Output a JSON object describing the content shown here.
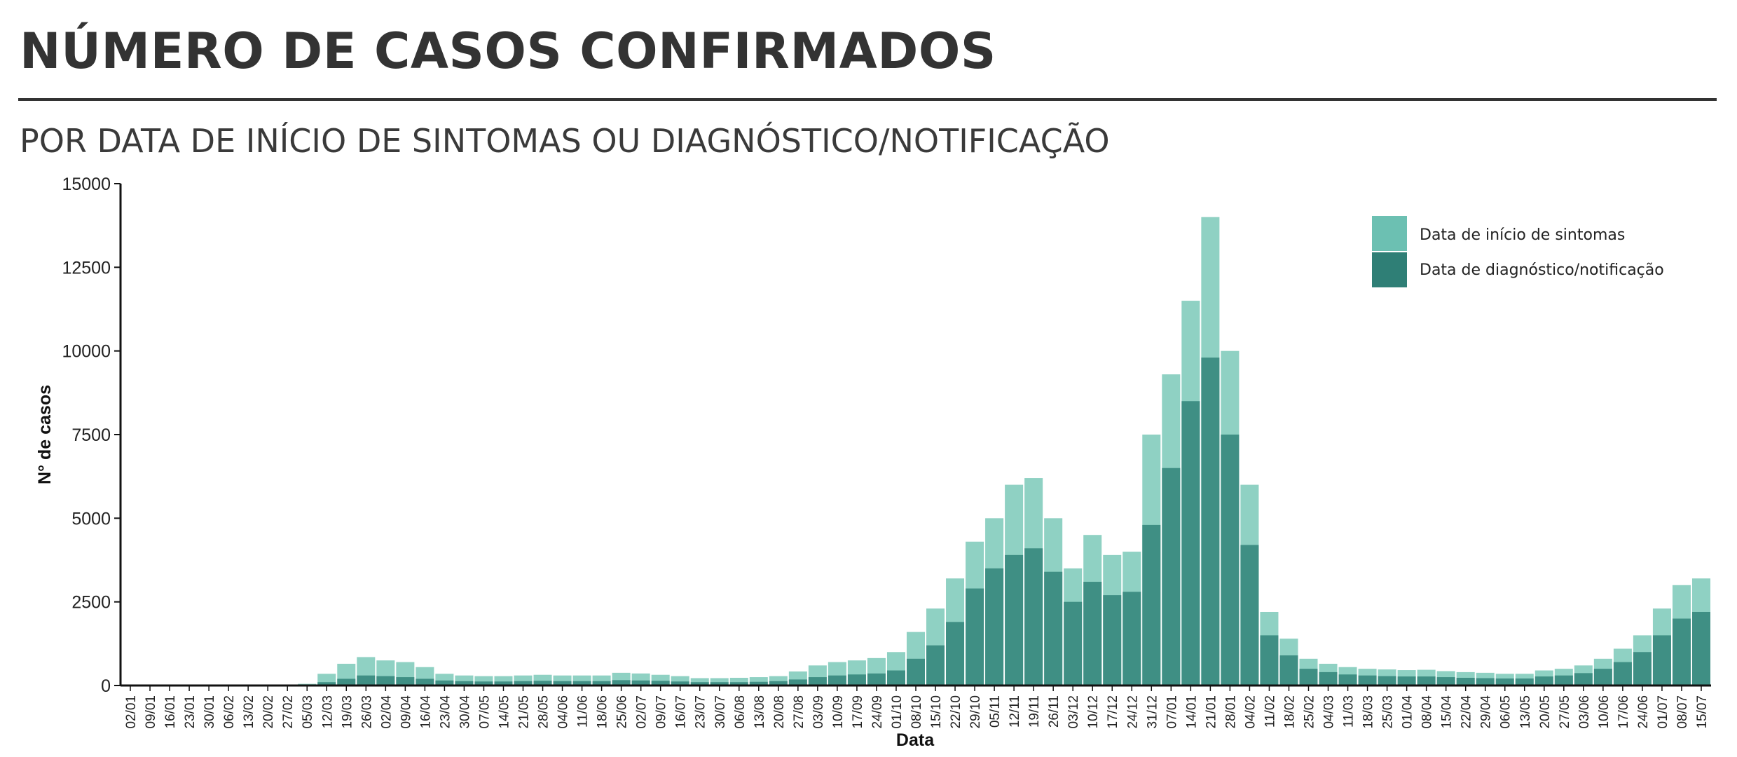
{
  "header": {
    "title": "NÚMERO DE CASOS CONFIRMADOS",
    "subtitle": "POR DATA DE INÍCIO DE SINTOMAS OU DIAGNÓSTICO/NOTIFICAÇÃO"
  },
  "colors": {
    "symptoms": "#8fd1c3",
    "diagnosis": "#3f8f84",
    "legend_symptoms": "#6cc0b2",
    "legend_diagnosis": "#2f7f76",
    "axis": "#111111"
  },
  "chart_data": {
    "type": "bar",
    "title": "",
    "xlabel": "Data",
    "ylabel": "N° de casos",
    "ylim": [
      0,
      15000
    ],
    "yticks": [
      0,
      2500,
      5000,
      7500,
      10000,
      12500,
      15000
    ],
    "xticks": [
      "02/01",
      "09/01",
      "16/01",
      "23/01",
      "30/01",
      "06/02",
      "13/02",
      "20/02",
      "27/02",
      "05/03",
      "12/03",
      "19/03",
      "26/03",
      "02/04",
      "09/04",
      "16/04",
      "23/04",
      "30/04",
      "07/05",
      "14/05",
      "21/05",
      "28/05",
      "04/06",
      "11/06",
      "18/06",
      "25/06",
      "02/07",
      "09/07",
      "16/07",
      "23/07",
      "30/07",
      "06/08",
      "13/08",
      "20/08",
      "27/08",
      "03/09",
      "10/09",
      "17/09",
      "24/09",
      "01/10",
      "08/10",
      "15/10",
      "22/10",
      "29/10",
      "05/11",
      "12/11",
      "19/11",
      "26/11",
      "03/12",
      "10/12",
      "17/12",
      "24/12",
      "31/12",
      "07/01",
      "14/01",
      "21/01",
      "28/01",
      "04/02",
      "11/02",
      "18/02",
      "25/02",
      "04/03",
      "11/03",
      "18/03",
      "25/03",
      "01/04",
      "08/04",
      "15/04",
      "22/04",
      "29/04",
      "06/05",
      "13/05",
      "20/05",
      "27/05",
      "03/06",
      "10/06",
      "17/06",
      "24/06",
      "01/07",
      "08/07",
      "15/07"
    ],
    "legend_position": "top-right",
    "grid": false,
    "series": [
      {
        "name": "Data de início de sintomas",
        "color": "#8fd1c3",
        "values": [
          0,
          0,
          0,
          0,
          0,
          0,
          0,
          0,
          0,
          50,
          350,
          650,
          850,
          750,
          700,
          550,
          350,
          300,
          280,
          280,
          300,
          320,
          300,
          300,
          300,
          380,
          360,
          320,
          280,
          220,
          220,
          230,
          250,
          280,
          420,
          600,
          700,
          750,
          820,
          1000,
          1600,
          2300,
          3200,
          4300,
          5000,
          6000,
          6200,
          5000,
          3500,
          4500,
          3900,
          4000,
          7500,
          9300,
          11500,
          14000,
          10000,
          6000,
          2200,
          1400,
          800,
          650,
          550,
          500,
          480,
          460,
          470,
          430,
          400,
          380,
          350,
          350,
          450,
          500,
          600,
          800,
          1100,
          1500,
          2300,
          3000,
          3200
        ]
      },
      {
        "name": "Data de diagnóstico/notificação",
        "color": "#3f8f84",
        "values": [
          0,
          0,
          0,
          0,
          0,
          0,
          0,
          0,
          0,
          0,
          100,
          200,
          300,
          280,
          250,
          200,
          150,
          130,
          120,
          120,
          130,
          140,
          130,
          130,
          130,
          160,
          150,
          140,
          120,
          100,
          100,
          100,
          110,
          130,
          180,
          250,
          300,
          330,
          360,
          450,
          800,
          1200,
          1900,
          2900,
          3500,
          3900,
          4100,
          3400,
          2500,
          3100,
          2700,
          2800,
          4800,
          6500,
          8500,
          9800,
          7500,
          4200,
          1500,
          900,
          500,
          400,
          330,
          300,
          280,
          270,
          270,
          250,
          230,
          220,
          210,
          210,
          270,
          300,
          370,
          500,
          700,
          1000,
          1500,
          2000,
          2200
        ]
      }
    ]
  }
}
